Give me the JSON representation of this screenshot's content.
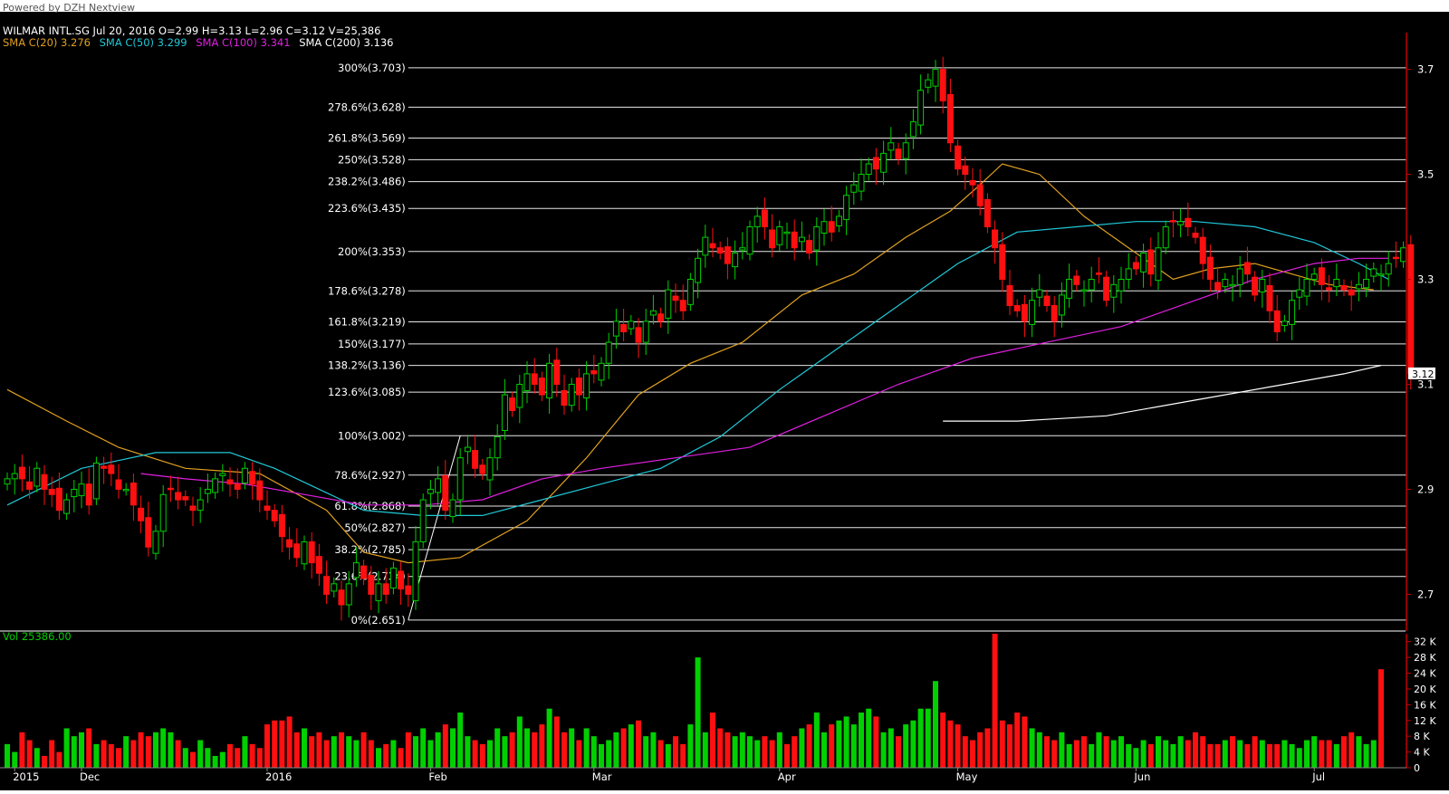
{
  "header": {
    "powered_by": "Powered by DZH Nextview",
    "quote": "WILMAR INTL.SG Jul 20, 2016   O=2.99   H=3.13   L=2.96   C=3.12   V=25,386"
  },
  "sma_legend": [
    {
      "label": "SMA C(20) 3.276",
      "color": "#e0a020"
    },
    {
      "label": "SMA C(50) 3.299",
      "color": "#20c8d8"
    },
    {
      "label": "SMA C(100) 3.341",
      "color": "#e020e0"
    },
    {
      "label": "SMA C(200) 3.136",
      "color": "#ffffff"
    }
  ],
  "colors": {
    "background": "#000000",
    "up": "#00d000",
    "down": "#ff1010",
    "axis": "#c00000",
    "fib": "#ffffff",
    "text": "#ffffff"
  },
  "chart_data": [
    {
      "type": "candlestick",
      "title": "WILMAR INTL.SG",
      "y_axis_ticks": [
        2.7,
        2.9,
        3.1,
        3.3,
        3.5,
        3.7
      ],
      "ylim": [
        2.63,
        3.77
      ],
      "last_price_label": "3.12",
      "fibonacci_levels": [
        {
          "label": "300%(3.703)",
          "value": 3.703
        },
        {
          "label": "278.6%(3.628)",
          "value": 3.628
        },
        {
          "label": "261.8%(3.569)",
          "value": 3.569
        },
        {
          "label": "250%(3.528)",
          "value": 3.528
        },
        {
          "label": "238.2%(3.486)",
          "value": 3.486
        },
        {
          "label": "223.6%(3.435)",
          "value": 3.435
        },
        {
          "label": "200%(3.353)",
          "value": 3.353
        },
        {
          "label": "178.6%(3.278)",
          "value": 3.278
        },
        {
          "label": "161.8%(3.219)",
          "value": 3.219
        },
        {
          "label": "150%(3.177)",
          "value": 3.177
        },
        {
          "label": "138.2%(3.136)",
          "value": 3.136
        },
        {
          "label": "123.6%(3.085)",
          "value": 3.085
        },
        {
          "label": "100%(3.002)",
          "value": 3.002
        },
        {
          "label": "78.6%(2.927)",
          "value": 2.927
        },
        {
          "label": "61.8%(2.868)",
          "value": 2.868
        },
        {
          "label": "50%(2.827)",
          "value": 2.827
        },
        {
          "label": "38.2%(2.785)",
          "value": 2.785
        },
        {
          "label": "23.6%(2.734)",
          "value": 2.734
        },
        {
          "label": "0%(2.651)",
          "value": 2.651
        }
      ],
      "fib_anchor": {
        "low_index": 54,
        "low_value": 2.651,
        "high_index": 61,
        "high_value": 3.002
      },
      "x_labels": [
        {
          "label": "2015",
          "index": 1
        },
        {
          "label": "Dec",
          "index": 10
        },
        {
          "label": "2016",
          "index": 35
        },
        {
          "label": "Feb",
          "index": 57
        },
        {
          "label": "Mar",
          "index": 79
        },
        {
          "label": "Apr",
          "index": 104
        },
        {
          "label": "May",
          "index": 128
        },
        {
          "label": "Jun",
          "index": 152
        },
        {
          "label": "Jul",
          "index": 176
        }
      ],
      "closes": [
        2.92,
        2.93,
        2.92,
        2.9,
        2.94,
        2.9,
        2.89,
        2.86,
        2.88,
        2.9,
        2.91,
        2.87,
        2.95,
        2.94,
        2.93,
        2.9,
        2.9,
        2.87,
        2.84,
        2.79,
        2.82,
        2.89,
        2.9,
        2.88,
        2.88,
        2.86,
        2.88,
        2.9,
        2.92,
        2.93,
        2.91,
        2.9,
        2.94,
        2.91,
        2.88,
        2.86,
        2.84,
        2.81,
        2.79,
        2.77,
        2.8,
        2.76,
        2.74,
        2.7,
        2.72,
        2.68,
        2.72,
        2.76,
        2.73,
        2.7,
        2.72,
        2.7,
        2.75,
        2.71,
        2.7,
        2.8,
        2.88,
        2.9,
        2.92,
        2.86,
        2.88,
        2.96,
        2.98,
        2.94,
        2.93,
        2.96,
        3.0,
        3.08,
        3.05,
        3.1,
        3.12,
        3.1,
        3.08,
        3.14,
        3.1,
        3.06,
        3.1,
        3.08,
        3.12,
        3.12,
        3.14,
        3.18,
        3.22,
        3.2,
        3.22,
        3.18,
        3.22,
        3.24,
        3.22,
        3.28,
        3.26,
        3.24,
        3.3,
        3.34,
        3.38,
        3.36,
        3.35,
        3.33,
        3.35,
        3.36,
        3.4,
        3.42,
        3.4,
        3.36,
        3.4,
        3.39,
        3.36,
        3.38,
        3.35,
        3.4,
        3.41,
        3.39,
        3.42,
        3.46,
        3.48,
        3.5,
        3.52,
        3.51,
        3.54,
        3.56,
        3.53,
        3.56,
        3.6,
        3.66,
        3.68,
        3.7,
        3.64,
        3.56,
        3.51,
        3.5,
        3.48,
        3.44,
        3.4,
        3.36,
        3.3,
        3.25,
        3.24,
        3.22,
        3.26,
        3.28,
        3.25,
        3.22,
        3.27,
        3.3,
        3.29,
        3.28,
        3.3,
        3.31,
        3.26,
        3.29,
        3.3,
        3.32,
        3.32,
        3.35,
        3.31,
        3.36,
        3.4,
        3.41,
        3.41,
        3.4,
        3.38,
        3.33,
        3.3,
        3.28,
        3.3,
        3.29,
        3.32,
        3.31,
        3.27,
        3.3,
        3.24,
        3.2,
        3.22,
        3.26,
        3.28,
        3.3,
        3.31,
        3.29,
        3.28,
        3.3,
        3.28,
        3.27,
        3.29,
        3.3,
        3.32,
        3.31,
        3.33,
        3.34,
        3.36,
        3.12
      ],
      "sma_series": [
        {
          "name": "SMA C(20)",
          "value": 3.276,
          "start": 0,
          "points": [
            [
              0,
              3.09
            ],
            [
              8,
              3.03
            ],
            [
              15,
              2.98
            ],
            [
              24,
              2.94
            ],
            [
              34,
              2.93
            ],
            [
              43,
              2.86
            ],
            [
              48,
              2.78
            ],
            [
              54,
              2.76
            ],
            [
              61,
              2.77
            ],
            [
              70,
              2.84
            ],
            [
              78,
              2.96
            ],
            [
              85,
              3.08
            ],
            [
              92,
              3.14
            ],
            [
              99,
              3.18
            ],
            [
              107,
              3.27
            ],
            [
              114,
              3.31
            ],
            [
              121,
              3.38
            ],
            [
              127,
              3.43
            ],
            [
              131,
              3.48
            ],
            [
              134,
              3.52
            ],
            [
              139,
              3.5
            ],
            [
              145,
              3.42
            ],
            [
              151,
              3.36
            ],
            [
              157,
              3.3
            ],
            [
              162,
              3.32
            ],
            [
              168,
              3.33
            ],
            [
              173,
              3.31
            ],
            [
              178,
              3.29
            ],
            [
              184,
              3.28
            ]
          ]
        },
        {
          "name": "SMA C(50)",
          "value": 3.299,
          "start": 0,
          "points": [
            [
              0,
              2.87
            ],
            [
              10,
              2.94
            ],
            [
              20,
              2.97
            ],
            [
              30,
              2.97
            ],
            [
              36,
              2.94
            ],
            [
              42,
              2.9
            ],
            [
              48,
              2.86
            ],
            [
              56,
              2.85
            ],
            [
              64,
              2.85
            ],
            [
              72,
              2.88
            ],
            [
              80,
              2.91
            ],
            [
              88,
              2.94
            ],
            [
              96,
              3.0
            ],
            [
              104,
              3.09
            ],
            [
              112,
              3.17
            ],
            [
              120,
              3.25
            ],
            [
              128,
              3.33
            ],
            [
              136,
              3.39
            ],
            [
              144,
              3.4
            ],
            [
              152,
              3.41
            ],
            [
              160,
              3.41
            ],
            [
              168,
              3.4
            ],
            [
              176,
              3.37
            ],
            [
              182,
              3.33
            ],
            [
              186,
              3.3
            ]
          ]
        },
        {
          "name": "SMA C(100)",
          "value": 3.341,
          "start": 18,
          "points": [
            [
              18,
              2.93
            ],
            [
              24,
              2.92
            ],
            [
              32,
              2.91
            ],
            [
              40,
              2.89
            ],
            [
              48,
              2.87
            ],
            [
              56,
              2.87
            ],
            [
              64,
              2.88
            ],
            [
              72,
              2.92
            ],
            [
              80,
              2.94
            ],
            [
              90,
              2.96
            ],
            [
              100,
              2.98
            ],
            [
              110,
              3.04
            ],
            [
              120,
              3.1
            ],
            [
              130,
              3.15
            ],
            [
              140,
              3.18
            ],
            [
              150,
              3.21
            ],
            [
              160,
              3.26
            ],
            [
              168,
              3.3
            ],
            [
              176,
              3.33
            ],
            [
              182,
              3.34
            ],
            [
              186,
              3.34
            ]
          ]
        },
        {
          "name": "SMA C(200)",
          "value": 3.136,
          "start": 126,
          "points": [
            [
              126,
              3.03
            ],
            [
              136,
              3.03
            ],
            [
              148,
              3.04
            ],
            [
              160,
              3.07
            ],
            [
              172,
              3.1
            ],
            [
              180,
              3.12
            ],
            [
              185,
              3.136
            ]
          ]
        }
      ]
    },
    {
      "type": "bar",
      "title": "Vol",
      "legend": "Vol  25386.00",
      "y_axis_labels": [
        "32 K",
        "28 K",
        "24 K",
        "20 K",
        "16 K",
        "12 K",
        "8 K",
        "4 K",
        "0"
      ],
      "y_axis_values": [
        32000,
        28000,
        24000,
        20000,
        16000,
        12000,
        8000,
        4000,
        0
      ],
      "ylim": [
        0,
        34000
      ],
      "volume_k": [
        6,
        4,
        9,
        7,
        5,
        3,
        7,
        4,
        10,
        8,
        9,
        10,
        6,
        7,
        6,
        5,
        8,
        7,
        9,
        8,
        9,
        10,
        9,
        7,
        5,
        4,
        7,
        5,
        3,
        4,
        6,
        5,
        8,
        6,
        5,
        11,
        12,
        12,
        13,
        9,
        10,
        8,
        9,
        7,
        8,
        9,
        8,
        7,
        9,
        7,
        5,
        6,
        7,
        5,
        9,
        8,
        10,
        7,
        9,
        11,
        10,
        14,
        8,
        7,
        6,
        7,
        10,
        8,
        9,
        13,
        10,
        9,
        11,
        15,
        13,
        9,
        10,
        7,
        10,
        8,
        6,
        7,
        9,
        10,
        11,
        12,
        8,
        9,
        7,
        6,
        8,
        6,
        11,
        28,
        9,
        14,
        10,
        9,
        8,
        9,
        8,
        7,
        8,
        7,
        9,
        6,
        8,
        10,
        11,
        14,
        9,
        11,
        12,
        13,
        11,
        14,
        15,
        13,
        9,
        10,
        8,
        11,
        12,
        15,
        15,
        22,
        14,
        12,
        11,
        8,
        7,
        9,
        10,
        34,
        12,
        11,
        14,
        13,
        10,
        9,
        8,
        7,
        9,
        6,
        7,
        8,
        6,
        9,
        8,
        7,
        8,
        6,
        5,
        7,
        6,
        8,
        7,
        6,
        8,
        7,
        9,
        8,
        6,
        6,
        7,
        8,
        7,
        6,
        8,
        7,
        6,
        6,
        7,
        6,
        5,
        7,
        8,
        7,
        7,
        6,
        8,
        9,
        8,
        6,
        7,
        25
      ]
    }
  ]
}
